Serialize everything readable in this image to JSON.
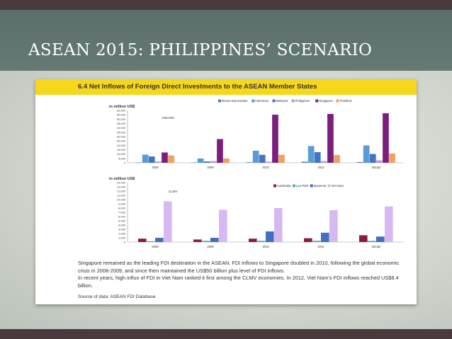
{
  "slide": {
    "title": "ASEAN 2015: PHILIPPINES’ SCENARIO",
    "colors": {
      "band": "#4a3a3d",
      "title_band": "#5c6e6a",
      "header": "#f7d71b"
    }
  },
  "card": {
    "header_title": "6.4 Net Inflows of Foreign Direct Investments to the ASEAN Member States",
    "caption_line1": "Singapore remained as the leading FDI destination in the ASEAN. FDI inflows to Singapore doubled in 2010, following the global economic crisis in 2008-2009, and since then maintained the US$50 billion plus level of FDI inflows.",
    "caption_line2": "In recent years, high influx of FDI in Viet Nam ranked it first among the CLMV economies. In 2012, Viet Nam’s FDI inflows reached US$8.4 billion.",
    "source": "Source of data:  ASEAN FDI Database"
  },
  "chart_data": [
    {
      "type": "bar",
      "title": "ASEAN6",
      "ylabel": "in million US$",
      "ylim": [
        0,
        60000
      ],
      "yticks": [
        "60,000",
        "55,000",
        "50,000",
        "45,000",
        "40,000",
        "35,000",
        "30,000",
        "25,000",
        "20,000",
        "15,000",
        "10,000",
        "5,000",
        "0"
      ],
      "categories": [
        "2008",
        "2009",
        "2010",
        "2011",
        "2012p/"
      ],
      "legend_position": "top-right",
      "series": [
        {
          "name": "Brunei Darussalam",
          "color": "#4f7fb5",
          "values": [
            300,
            400,
            600,
            1200,
            800
          ]
        },
        {
          "name": "Indonesia",
          "color": "#5b9bd5",
          "values": [
            9300,
            4900,
            13800,
            19200,
            19900
          ]
        },
        {
          "name": "Malaysia",
          "color": "#4472c4",
          "values": [
            7200,
            1500,
            9100,
            12200,
            10100
          ]
        },
        {
          "name": "Philippines",
          "color": "#b39ddb",
          "values": [
            1500,
            2000,
            1300,
            1900,
            2800
          ]
        },
        {
          "name": "Singapore",
          "color": "#7b1f7f",
          "values": [
            11800,
            27200,
            55100,
            56000,
            56700
          ]
        },
        {
          "name": "Thailand",
          "color": "#f0a160",
          "values": [
            8500,
            5000,
            9100,
            8900,
            10700
          ]
        }
      ]
    },
    {
      "type": "bar",
      "title": "CLMV",
      "ylabel": "in million US$",
      "ylim": [
        0,
        14000
      ],
      "yticks": [
        "14,000",
        "13,000",
        "12,000",
        "11,000",
        "10,000",
        "9,000",
        "8,000",
        "7,000",
        "6,000",
        "5,000",
        "4,000",
        "3,000",
        "2,000",
        "1,000",
        "0"
      ],
      "categories": [
        "2008",
        "2009",
        "2010",
        "2011",
        "2012p/"
      ],
      "legend_position": "top-right",
      "series": [
        {
          "name": "Cambodia",
          "color": "#8b1a3f",
          "values": [
            800,
            600,
            800,
            900,
            1600
          ]
        },
        {
          "name": "Lao PDR",
          "color": "#4fb3c4",
          "values": [
            200,
            300,
            300,
            300,
            300
          ]
        },
        {
          "name": "Myanmar",
          "color": "#3f6fc0",
          "values": [
            1000,
            1000,
            2500,
            2200,
            1300
          ]
        },
        {
          "name": "Viet Nam",
          "color": "#d7b9f2",
          "values": [
            9600,
            7600,
            8000,
            7500,
            8400
          ]
        }
      ]
    }
  ]
}
